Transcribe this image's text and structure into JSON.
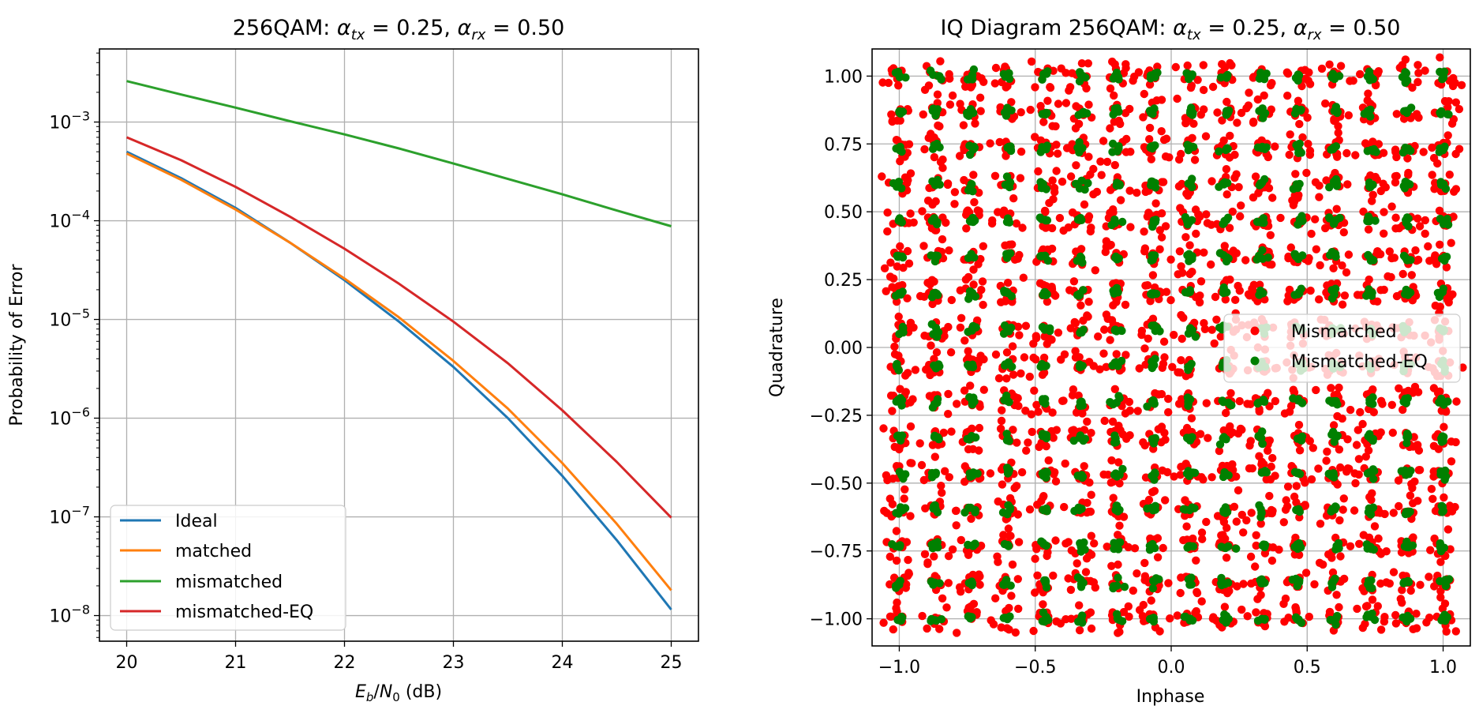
{
  "chart_data": [
    {
      "type": "line",
      "title": "256QAM: α_tx = 0.25, α_rx = 0.50",
      "title_parts": {
        "prefix": "256QAM: ",
        "a1": "α",
        "s1": "tx",
        "e1": " = 0.25, ",
        "a2": "α",
        "s2": "rx",
        "e2": " = 0.50"
      },
      "xlabel": "E_b/N_0 (dB)",
      "xlabel_parts": {
        "E": "E",
        "Esub": "b",
        "slash": "/",
        "N": "N",
        "Nsub": "0",
        "unit": " (dB)"
      },
      "ylabel": "Probability of Error",
      "x_scale": "linear",
      "y_scale": "log",
      "xlim": [
        19.75,
        25.25
      ],
      "ylim": [
        5.5e-09,
        0.0055
      ],
      "xticks": [
        "20",
        "21",
        "22",
        "23",
        "24",
        "25"
      ],
      "yticks": [
        {
          "base": "10",
          "exp": "−3",
          "value": 0.001
        },
        {
          "base": "10",
          "exp": "−4",
          "value": 0.0001
        },
        {
          "base": "10",
          "exp": "−5",
          "value": 1e-05
        },
        {
          "base": "10",
          "exp": "−6",
          "value": 1e-06
        },
        {
          "base": "10",
          "exp": "−7",
          "value": 1e-07
        },
        {
          "base": "10",
          "exp": "−8",
          "value": 1e-08
        }
      ],
      "grid": true,
      "legend_position": "lower-left",
      "x": [
        20,
        20.5,
        21,
        21.5,
        22,
        22.5,
        23,
        23.5,
        24,
        24.5,
        25
      ],
      "series": [
        {
          "name": "Ideal",
          "color": "#1f77b4",
          "values": [
            0.0005,
            0.00027,
            0.000135,
            6e-05,
            2.5e-05,
            9.5e-06,
            3.3e-06,
            1e-06,
            2.6e-07,
            5.8e-08,
            1.15e-08
          ]
        },
        {
          "name": "matched",
          "color": "#ff7f0e",
          "values": [
            0.00048,
            0.00026,
            0.00013,
            6e-05,
            2.6e-05,
            1.05e-05,
            3.8e-06,
            1.25e-06,
            3.5e-07,
            8.5e-08,
            1.8e-08
          ]
        },
        {
          "name": "mismatched",
          "color": "#2ca02c",
          "values": [
            0.0026,
            0.0019,
            0.0014,
            0.00102,
            0.00075,
            0.00054,
            0.00038,
            0.000265,
            0.000185,
            0.000127,
            8.8e-05
          ]
        },
        {
          "name": "mismatched-EQ",
          "color": "#d62728",
          "values": [
            0.0007,
            0.00041,
            0.00022,
            0.00011,
            5.2e-05,
            2.3e-05,
            9.5e-06,
            3.6e-06,
            1.2e-06,
            3.6e-07,
            9.8e-08
          ]
        }
      ]
    },
    {
      "type": "scatter",
      "title": "IQ Diagram 256QAM: α_tx = 0.25, α_rx = 0.50",
      "title_parts": {
        "prefix": "IQ Diagram 256QAM: ",
        "a1": "α",
        "s1": "tx",
        "e1": " = 0.25, ",
        "a2": "α",
        "s2": "rx",
        "e2": " = 0.50"
      },
      "xlabel": "Inphase",
      "ylabel": "Quadrature",
      "xlim": [
        -1.1,
        1.1
      ],
      "ylim": [
        -1.1,
        1.1
      ],
      "xticks": [
        "−1.0",
        "−0.5",
        "0.0",
        "0.5",
        "1.0"
      ],
      "xtick_values": [
        -1.0,
        -0.5,
        0.0,
        0.5,
        1.0
      ],
      "yticks": [
        "1.00",
        "0.75",
        "0.50",
        "0.25",
        "0.00",
        "−0.25",
        "−0.50",
        "−0.75",
        "−1.00"
      ],
      "ytick_values": [
        1.0,
        0.75,
        0.5,
        0.25,
        0.0,
        -0.25,
        -0.5,
        -0.75,
        -1.0
      ],
      "grid": true,
      "legend_position": "center-right",
      "constellation": {
        "levels": [
          -1.0,
          -0.8667,
          -0.7333,
          -0.6,
          -0.4667,
          -0.3333,
          -0.2,
          -0.0667,
          0.0667,
          0.2,
          0.3333,
          0.4667,
          0.6,
          0.7333,
          0.8667,
          1.0
        ],
        "note_shape": "16 x 16 grid of noisy point clusters"
      },
      "series": [
        {
          "name": "Mismatched",
          "color": "#ff0000",
          "spread": 0.028,
          "points_per_symbol": 10
        },
        {
          "name": "Mismatched-EQ",
          "color": "#008000",
          "spread": 0.009,
          "points_per_symbol": 5
        }
      ]
    }
  ]
}
